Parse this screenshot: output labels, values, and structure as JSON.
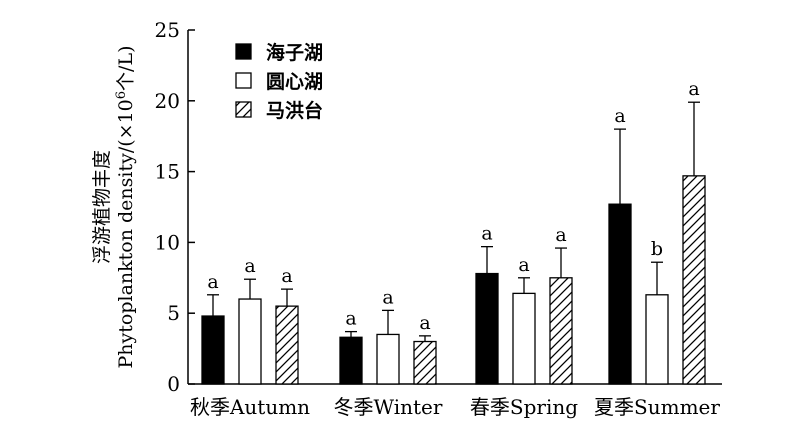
{
  "chart_data": {
    "type": "bar",
    "title": "",
    "xlabel": "",
    "ylabel_line1": "浮游植物丰度",
    "ylabel_line2_prefix": "Phytoplankton density/(×10",
    "ylabel_line2_sup": "6",
    "ylabel_line2_suffix": "个/L)",
    "ylim": [
      0,
      25
    ],
    "yticks": [
      0,
      5,
      10,
      15,
      20,
      25
    ],
    "categories": [
      "秋季Autumn",
      "冬季Winter",
      "春季Spring",
      "夏季Summer"
    ],
    "legend_position": "top-left",
    "colors": {
      "axis": "#000000",
      "bar_edge": "#000000",
      "solid_fill": "#000000",
      "open_fill": "#ffffff"
    },
    "series": [
      {
        "name": "海子湖",
        "pattern": "solid",
        "values": [
          4.8,
          3.3,
          7.8,
          12.7
        ],
        "errors": [
          1.5,
          0.4,
          1.9,
          5.3
        ],
        "labels": [
          "a",
          "a",
          "a",
          "a"
        ]
      },
      {
        "name": "圆心湖",
        "pattern": "open",
        "values": [
          6.0,
          3.5,
          6.4,
          6.3
        ],
        "errors": [
          1.4,
          1.7,
          1.1,
          2.3
        ],
        "labels": [
          "a",
          "a",
          "a",
          "b"
        ]
      },
      {
        "name": "马洪台",
        "pattern": "hatched",
        "values": [
          5.5,
          3.0,
          7.5,
          14.7
        ],
        "errors": [
          1.2,
          0.4,
          2.1,
          5.2
        ],
        "labels": [
          "a",
          "a",
          "a",
          "a"
        ]
      }
    ]
  }
}
